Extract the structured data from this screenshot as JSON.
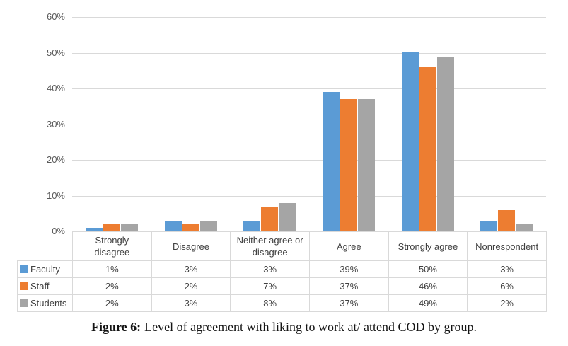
{
  "chart_data": {
    "type": "bar",
    "title": "",
    "categories": [
      "Strongly disagree",
      "Disagree",
      "Neither agree or disagree",
      "Agree",
      "Strongly agree",
      "Nonrespondent"
    ],
    "series": [
      {
        "name": "Faculty",
        "color": "#5B9BD5",
        "values": [
          1,
          3,
          3,
          39,
          50,
          3
        ]
      },
      {
        "name": "Staff",
        "color": "#ED7D31",
        "values": [
          2,
          2,
          7,
          37,
          46,
          6
        ]
      },
      {
        "name": "Students",
        "color": "#A5A5A5",
        "values": [
          2,
          3,
          8,
          37,
          49,
          2
        ]
      }
    ],
    "value_suffix": "%",
    "ylim": [
      0,
      60
    ],
    "yticks": [
      "0%",
      "10%",
      "20%",
      "30%",
      "40%",
      "50%",
      "60%"
    ],
    "grid": true,
    "legend_position": "data-table-left",
    "has_data_table": true
  },
  "caption": {
    "label": "Figure 6:",
    "text": "Level of agreement with liking to work at/ attend COD by group."
  }
}
